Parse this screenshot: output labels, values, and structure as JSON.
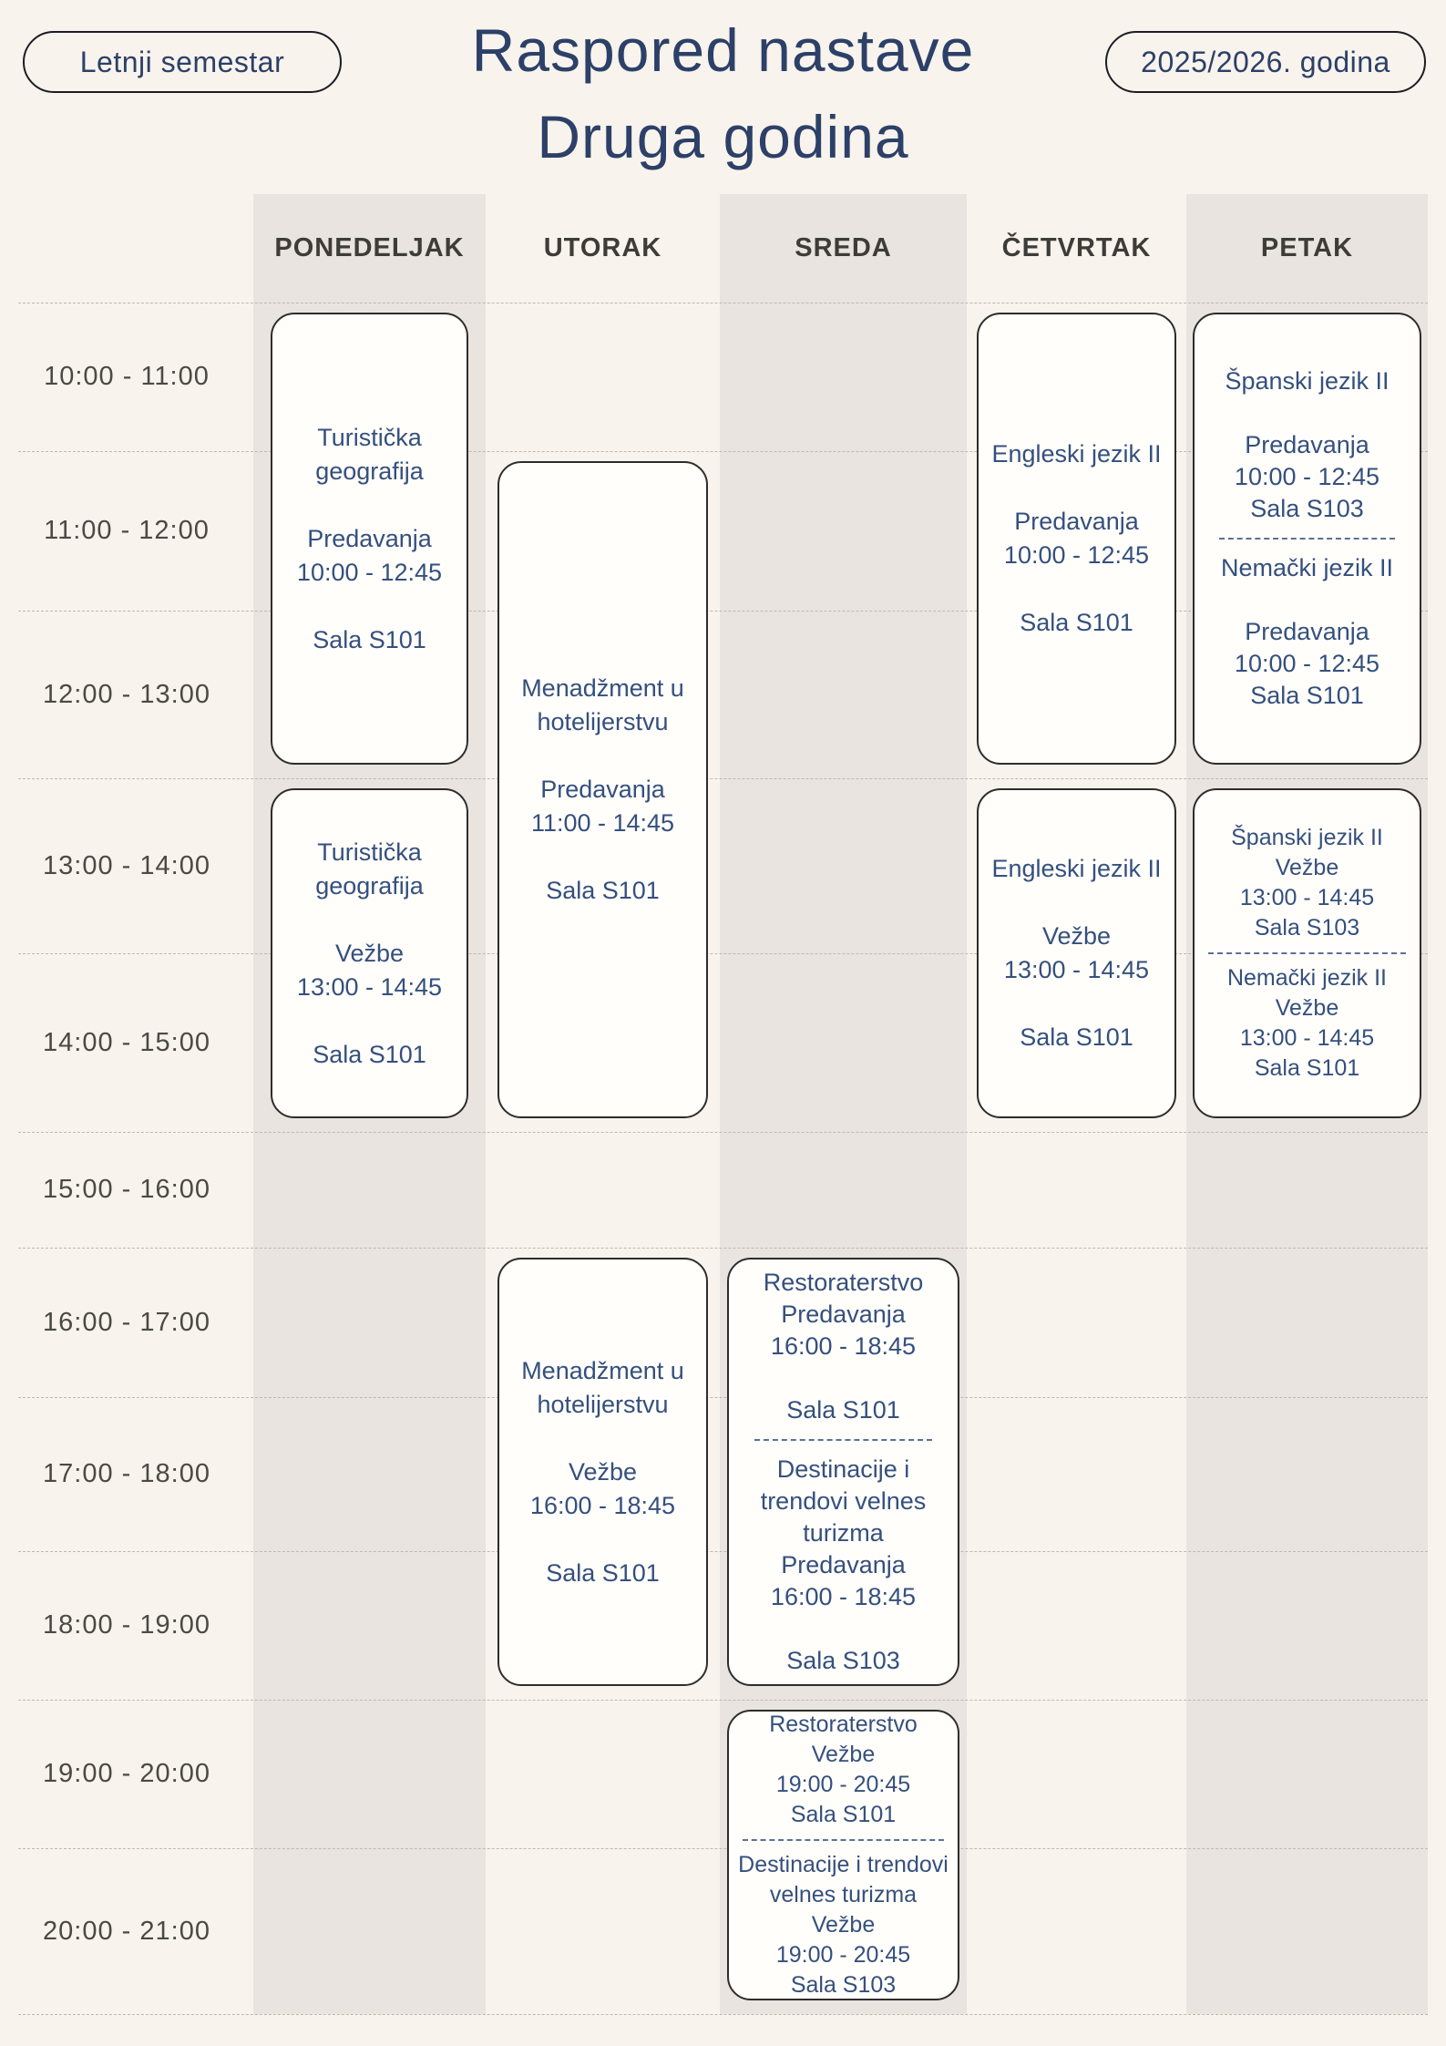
{
  "header": {
    "semester_pill": "Letnji semestar",
    "year_pill": "2025/2026. godina",
    "title_line1": "Raspored nastave",
    "title_line2": "Druga godina"
  },
  "days": [
    "PONEDELJAK",
    "UTORAK",
    "SREDA",
    "ČETVRTAK",
    "PETAK"
  ],
  "time_slots": [
    "10:00 - 11:00",
    "11:00 - 12:00",
    "12:00 - 13:00",
    "13:00 - 14:00",
    "14:00 - 15:00",
    "15:00 - 16:00",
    "16:00 - 17:00",
    "17:00 - 18:00",
    "18:00 - 19:00",
    "19:00 - 20:00",
    "20:00 - 21:00"
  ],
  "colors": {
    "background": "#f8f3ec",
    "stripe": "#e9e4df",
    "card_bg": "#fffefb",
    "card_border": "#2e2d2b",
    "navy": "#35507d",
    "navy_dark": "#2c4068",
    "divider": "#5b6f9d",
    "day_label": "#3e3c38",
    "time_label": "#4b4946",
    "row_line": "#bfb9b1",
    "pill_border": "#1c1c26"
  },
  "cards": [
    {
      "day": "PONEDELJAK",
      "day_index": 0,
      "row_start": 0,
      "row_end": 3,
      "variant": "a",
      "sections": [
        [
          "Turistička geografija",
          "",
          "Predavanja",
          "10:00 - 12:45",
          "",
          "Sala S101"
        ]
      ]
    },
    {
      "day": "PONEDELJAK",
      "day_index": 0,
      "row_start": 3,
      "row_end": 5,
      "variant": "a",
      "sections": [
        [
          "Turistička geografija",
          "",
          "Vežbe",
          "13:00 - 14:45",
          "",
          "Sala S101"
        ]
      ]
    },
    {
      "day": "UTORAK",
      "day_index": 1,
      "row_start": 1,
      "row_end": 5,
      "variant": "a",
      "sections": [
        [
          "Menadžment u hotelijerstvu",
          "",
          "Predavanja",
          "11:00 - 14:45",
          "",
          "Sala S101"
        ]
      ]
    },
    {
      "day": "UTORAK",
      "day_index": 1,
      "row_start": 6,
      "row_end": 9,
      "variant": "a",
      "sections": [
        [
          "Menadžment u hotelijerstvu",
          "",
          "Vežbe",
          "16:00 - 18:45",
          "",
          "Sala S101"
        ]
      ]
    },
    {
      "day": "SREDA",
      "day_index": 2,
      "row_start": 6,
      "row_end": 9,
      "variant": "b",
      "sections": [
        [
          "Restoraterstvo",
          "Predavanja",
          "16:00 - 18:45",
          "",
          "Sala S101"
        ],
        [
          "Destinacije i trendovi velnes turizma",
          "Predavanja",
          "16:00 - 18:45",
          "",
          "Sala S103"
        ]
      ]
    },
    {
      "day": "SREDA",
      "day_index": 2,
      "row_start": 9,
      "row_end": 11,
      "variant": "c",
      "sections": [
        [
          "Restoraterstvo",
          "Vežbe",
          "19:00 - 20:45",
          "Sala S101"
        ],
        [
          "Destinacije i trendovi velnes turizma",
          "Vežbe",
          "19:00 - 20:45",
          "Sala S103"
        ]
      ]
    },
    {
      "day": "ČETVRTAK",
      "day_index": 3,
      "row_start": 0,
      "row_end": 3,
      "variant": "a",
      "sections": [
        [
          "Engleski jezik II",
          "",
          "Predavanja",
          "10:00 - 12:45",
          "",
          "Sala S101"
        ]
      ]
    },
    {
      "day": "ČETVRTAK",
      "day_index": 3,
      "row_start": 3,
      "row_end": 5,
      "variant": "a",
      "sections": [
        [
          "Engleski jezik II",
          "",
          "Vežbe",
          "13:00 - 14:45",
          "",
          "Sala S101"
        ]
      ]
    },
    {
      "day": "PETAK",
      "day_index": 4,
      "row_start": 0,
      "row_end": 3,
      "variant": "b",
      "sections": [
        [
          "Španski jezik II",
          "",
          "Predavanja",
          "10:00 - 12:45",
          "Sala S103"
        ],
        [
          "Nemački jezik II",
          "",
          "Predavanja",
          "10:00 - 12:45",
          "Sala S101"
        ]
      ]
    },
    {
      "day": "PETAK",
      "day_index": 4,
      "row_start": 3,
      "row_end": 5,
      "variant": "c",
      "sections": [
        [
          "Španski jezik II",
          "Vežbe",
          "13:00 - 14:45",
          "Sala S103"
        ],
        [
          "Nemački jezik II",
          "Vežbe",
          "13:00 - 14:45",
          "Sala S101"
        ]
      ]
    }
  ]
}
